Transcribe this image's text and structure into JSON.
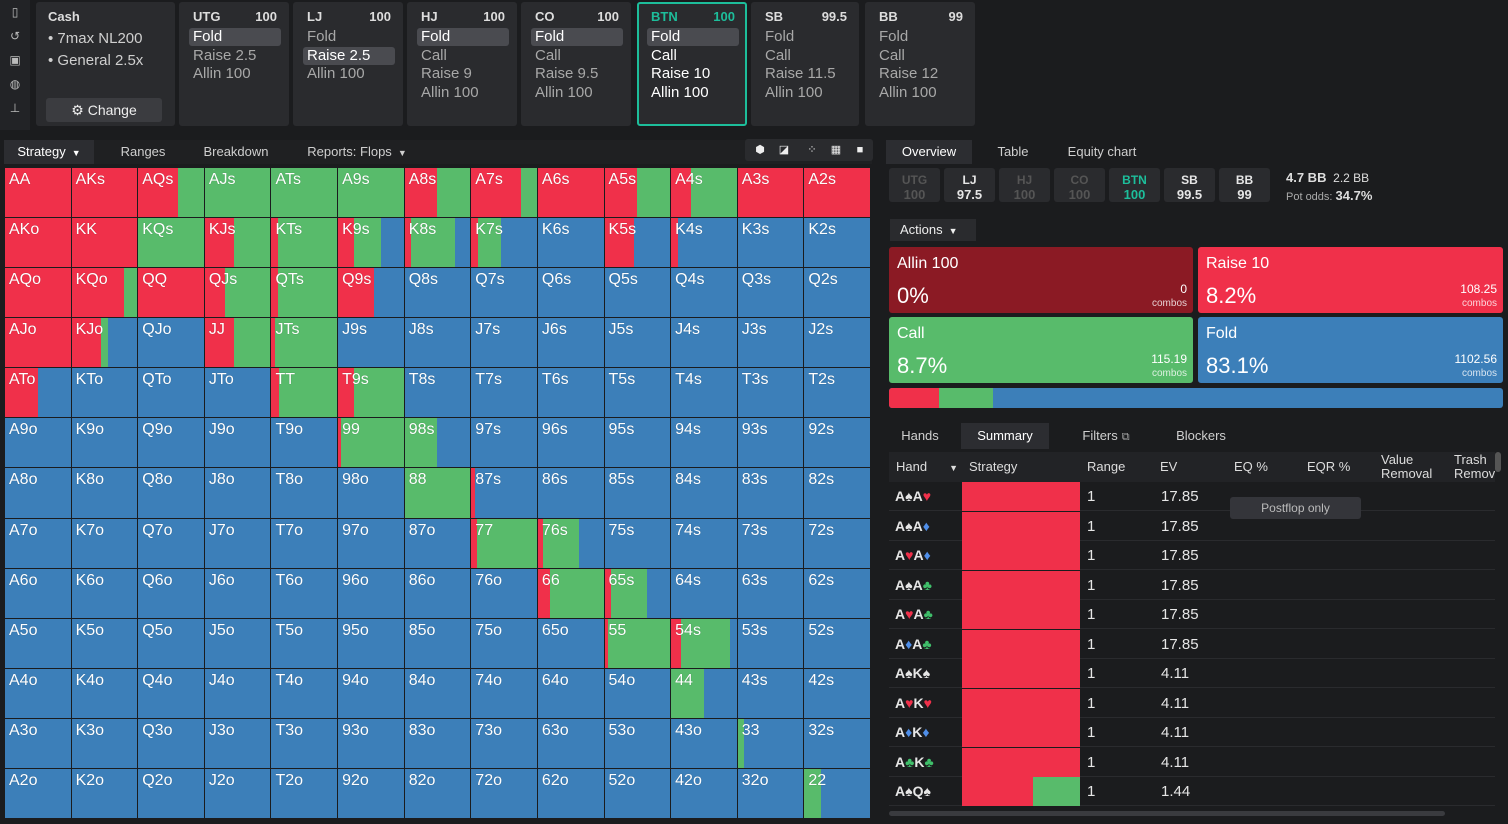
{
  "colors": {
    "raise": "#f0304a",
    "call": "#58bb6b",
    "fold": "#3c7fb9",
    "allin": "#8b1a24",
    "accent": "#1dbe9b"
  },
  "sidebar": {
    "icons": [
      "bookmark-icon",
      "history-icon",
      "save-icon",
      "gamepad-icon",
      "align-icon"
    ]
  },
  "cash": {
    "title": "Cash",
    "items": [
      "7max NL200",
      "General 2.5x"
    ],
    "change_label": "Change"
  },
  "positions": [
    {
      "name": "UTG",
      "stack": "100",
      "actions": [
        "Fold",
        "Raise 2.5",
        "Allin 100"
      ],
      "selected": 0
    },
    {
      "name": "LJ",
      "stack": "100",
      "actions": [
        "Fold",
        "Raise 2.5",
        "Allin 100"
      ],
      "selected": 1
    },
    {
      "name": "HJ",
      "stack": "100",
      "actions": [
        "Fold",
        "Call",
        "Raise 9",
        "Allin 100"
      ],
      "selected": 0
    },
    {
      "name": "CO",
      "stack": "100",
      "actions": [
        "Fold",
        "Call",
        "Raise 9.5",
        "Allin 100"
      ],
      "selected": 0
    },
    {
      "name": "BTN",
      "stack": "100",
      "actions": [
        "Fold",
        "Call",
        "Raise 10",
        "Allin 100"
      ],
      "selected": 0,
      "active": true
    },
    {
      "name": "SB",
      "stack": "99.5",
      "actions": [
        "Fold",
        "Call",
        "Raise 11.5",
        "Allin 100"
      ],
      "selected": -1
    },
    {
      "name": "BB",
      "stack": "99",
      "actions": [
        "Fold",
        "Call",
        "Raise 12",
        "Allin 100"
      ],
      "selected": -1
    }
  ],
  "left_tabs": [
    "Strategy",
    "Ranges",
    "Breakdown",
    "Reports: Flops"
  ],
  "view_icons": [
    "cube-icon",
    "contrast-icon",
    "compress-icon",
    "grid-icon",
    "square-icon"
  ],
  "right_tabs": [
    "Overview",
    "Table",
    "Equity chart"
  ],
  "pos_bar": [
    {
      "n": "UTG",
      "s": "100",
      "st": "dim"
    },
    {
      "n": "LJ",
      "s": "97.5",
      "st": ""
    },
    {
      "n": "HJ",
      "s": "100",
      "st": "dim"
    },
    {
      "n": "CO",
      "s": "100",
      "st": "dim"
    },
    {
      "n": "BTN",
      "s": "100",
      "st": "cur"
    },
    {
      "n": "SB",
      "s": "99.5",
      "st": ""
    },
    {
      "n": "BB",
      "s": "99",
      "st": ""
    }
  ],
  "pot": {
    "a": "4.7 BB",
    "b": "2.2 BB",
    "label": "Pot odds:",
    "odds": "34.7%"
  },
  "actions_label": "Actions",
  "action_boxes": [
    {
      "name": "Allin 100",
      "pct": "0%",
      "combos": "0",
      "unit": "combos",
      "color": "#8b1a24"
    },
    {
      "name": "Raise 10",
      "pct": "8.2%",
      "combos": "108.25",
      "unit": "combos",
      "color": "#f0304a"
    },
    {
      "name": "Call",
      "pct": "8.7%",
      "combos": "115.19",
      "unit": "combos",
      "color": "#58bb6b"
    },
    {
      "name": "Fold",
      "pct": "83.1%",
      "combos": "1102.56",
      "unit": "combos",
      "color": "#3c7fb9"
    }
  ],
  "mix": {
    "raise": 8.2,
    "call": 8.7,
    "fold": 83.1
  },
  "bottom_tabs": [
    "Hands",
    "Summary",
    "Filters",
    "Blockers"
  ],
  "table_headers": [
    "Hand",
    "Strategy",
    "Range",
    "EV",
    "EQ %",
    "EQR %",
    "Value Removal",
    "Trash Removal"
  ],
  "postflop_label": "Postflop only",
  "rows": [
    {
      "h": [
        [
          "A",
          "♠",
          "sp"
        ],
        [
          "A",
          "♥",
          "ht"
        ]
      ],
      "r": "1",
      "ev": "17.85",
      "mix": [
        1,
        0
      ]
    },
    {
      "h": [
        [
          "A",
          "♠",
          "sp"
        ],
        [
          "A",
          "♦",
          "dm"
        ]
      ],
      "r": "1",
      "ev": "17.85",
      "mix": [
        1,
        0
      ]
    },
    {
      "h": [
        [
          "A",
          "♥",
          "ht"
        ],
        [
          "A",
          "♦",
          "dm"
        ]
      ],
      "r": "1",
      "ev": "17.85",
      "mix": [
        1,
        0
      ]
    },
    {
      "h": [
        [
          "A",
          "♠",
          "sp"
        ],
        [
          "A",
          "♣",
          "cl"
        ]
      ],
      "r": "1",
      "ev": "17.85",
      "mix": [
        1,
        0
      ]
    },
    {
      "h": [
        [
          "A",
          "♥",
          "ht"
        ],
        [
          "A",
          "♣",
          "cl"
        ]
      ],
      "r": "1",
      "ev": "17.85",
      "mix": [
        1,
        0
      ]
    },
    {
      "h": [
        [
          "A",
          "♦",
          "dm"
        ],
        [
          "A",
          "♣",
          "cl"
        ]
      ],
      "r": "1",
      "ev": "17.85",
      "mix": [
        1,
        0
      ]
    },
    {
      "h": [
        [
          "A",
          "♠",
          "sp"
        ],
        [
          "K",
          "♠",
          "sp"
        ]
      ],
      "r": "1",
      "ev": "4.11",
      "mix": [
        1,
        0
      ]
    },
    {
      "h": [
        [
          "A",
          "♥",
          "ht"
        ],
        [
          "K",
          "♥",
          "ht"
        ]
      ],
      "r": "1",
      "ev": "4.11",
      "mix": [
        1,
        0
      ]
    },
    {
      "h": [
        [
          "A",
          "♦",
          "dm"
        ],
        [
          "K",
          "♦",
          "dm"
        ]
      ],
      "r": "1",
      "ev": "4.11",
      "mix": [
        1,
        0
      ]
    },
    {
      "h": [
        [
          "A",
          "♣",
          "cl"
        ],
        [
          "K",
          "♣",
          "cl"
        ]
      ],
      "r": "1",
      "ev": "4.11",
      "mix": [
        1,
        0
      ]
    },
    {
      "h": [
        [
          "A",
          "♠",
          "sp"
        ],
        [
          "Q",
          "♠",
          "sp"
        ]
      ],
      "r": "1",
      "ev": "1.44",
      "mix": [
        0.6,
        0.4
      ]
    }
  ],
  "grid": [
    [
      "AA",
      1,
      0
    ],
    [
      "AKs",
      1,
      0
    ],
    [
      "AQs",
      0.6,
      0.4
    ],
    [
      "AJs",
      0,
      1
    ],
    [
      "ATs",
      0,
      1
    ],
    [
      "A9s",
      0,
      1
    ],
    [
      "A8s",
      0.5,
      0.5
    ],
    [
      "A7s",
      0.75,
      0.25
    ],
    [
      "A6s",
      1,
      0
    ],
    [
      "A5s",
      0.5,
      0.5
    ],
    [
      "A4s",
      0.3,
      0.7
    ],
    [
      "A3s",
      1,
      0
    ],
    [
      "A2s",
      1,
      0
    ],
    [
      "AKo",
      1,
      0
    ],
    [
      "KK",
      1,
      0
    ],
    [
      "KQs",
      0,
      1
    ],
    [
      "KJs",
      0.45,
      0.55
    ],
    [
      "KTs",
      0.1,
      0.9
    ],
    [
      "K9s",
      0.25,
      0.4
    ],
    [
      "K8s",
      0.1,
      0.67
    ],
    [
      "K7s",
      0.1,
      0.35
    ],
    [
      "K6s",
      0,
      0
    ],
    [
      "K5s",
      0.45,
      0
    ],
    [
      "K4s",
      0.1,
      0
    ],
    [
      "K3s",
      0,
      0
    ],
    [
      "K2s",
      0,
      0
    ],
    [
      "AQo",
      1,
      0
    ],
    [
      "KQo",
      0.8,
      0.2
    ],
    [
      "QQ",
      1,
      0
    ],
    [
      "QJs",
      0.3,
      0.7
    ],
    [
      "QTs",
      0.1,
      0.9
    ],
    [
      "Q9s",
      0.55,
      0
    ],
    [
      "Q8s",
      0,
      0
    ],
    [
      "Q7s",
      0,
      0
    ],
    [
      "Q6s",
      0,
      0
    ],
    [
      "Q5s",
      0,
      0
    ],
    [
      "Q4s",
      0,
      0
    ],
    [
      "Q3s",
      0,
      0
    ],
    [
      "Q2s",
      0,
      0
    ],
    [
      "AJo",
      1,
      0
    ],
    [
      "KJo",
      0.45,
      0.1
    ],
    [
      "QJo",
      0,
      0
    ],
    [
      "JJ",
      0.45,
      0.55
    ],
    [
      "JTs",
      0.05,
      0.95
    ],
    [
      "J9s",
      0,
      0
    ],
    [
      "J8s",
      0,
      0
    ],
    [
      "J7s",
      0,
      0
    ],
    [
      "J6s",
      0,
      0
    ],
    [
      "J5s",
      0,
      0
    ],
    [
      "J4s",
      0,
      0
    ],
    [
      "J3s",
      0,
      0
    ],
    [
      "J2s",
      0,
      0
    ],
    [
      "ATo",
      0.5,
      0
    ],
    [
      "KTo",
      0,
      0
    ],
    [
      "QTo",
      0,
      0
    ],
    [
      "JTo",
      0,
      0
    ],
    [
      "TT",
      0.12,
      0.88
    ],
    [
      "T9s",
      0.25,
      0.75
    ],
    [
      "T8s",
      0,
      0
    ],
    [
      "T7s",
      0,
      0
    ],
    [
      "T6s",
      0,
      0
    ],
    [
      "T5s",
      0,
      0
    ],
    [
      "T4s",
      0,
      0
    ],
    [
      "T3s",
      0,
      0
    ],
    [
      "T2s",
      0,
      0
    ],
    [
      "A9o",
      0,
      0
    ],
    [
      "K9o",
      0,
      0
    ],
    [
      "Q9o",
      0,
      0
    ],
    [
      "J9o",
      0,
      0
    ],
    [
      "T9o",
      0,
      0
    ],
    [
      "99",
      0.05,
      0.95
    ],
    [
      "98s",
      0,
      0.5
    ],
    [
      "97s",
      0,
      0
    ],
    [
      "96s",
      0,
      0
    ],
    [
      "95s",
      0,
      0
    ],
    [
      "94s",
      0,
      0
    ],
    [
      "93s",
      0,
      0
    ],
    [
      "92s",
      0,
      0
    ],
    [
      "A8o",
      0,
      0
    ],
    [
      "K8o",
      0,
      0
    ],
    [
      "Q8o",
      0,
      0
    ],
    [
      "J8o",
      0,
      0
    ],
    [
      "T8o",
      0,
      0
    ],
    [
      "98o",
      0,
      0
    ],
    [
      "88",
      0,
      1
    ],
    [
      "87s",
      0.05,
      0
    ],
    [
      "86s",
      0,
      0
    ],
    [
      "85s",
      0,
      0
    ],
    [
      "84s",
      0,
      0
    ],
    [
      "83s",
      0,
      0
    ],
    [
      "82s",
      0,
      0
    ],
    [
      "A7o",
      0,
      0
    ],
    [
      "K7o",
      0,
      0
    ],
    [
      "Q7o",
      0,
      0
    ],
    [
      "J7o",
      0,
      0
    ],
    [
      "T7o",
      0,
      0
    ],
    [
      "97o",
      0,
      0
    ],
    [
      "87o",
      0,
      0
    ],
    [
      "77",
      0.08,
      0.92
    ],
    [
      "76s",
      0.08,
      0.55
    ],
    [
      "75s",
      0,
      0
    ],
    [
      "74s",
      0,
      0
    ],
    [
      "73s",
      0,
      0
    ],
    [
      "72s",
      0,
      0
    ],
    [
      "A6o",
      0,
      0
    ],
    [
      "K6o",
      0,
      0
    ],
    [
      "Q6o",
      0,
      0
    ],
    [
      "J6o",
      0,
      0
    ],
    [
      "T6o",
      0,
      0
    ],
    [
      "96o",
      0,
      0
    ],
    [
      "86o",
      0,
      0
    ],
    [
      "76o",
      0,
      0
    ],
    [
      "66",
      0.18,
      0.82
    ],
    [
      "65s",
      0.1,
      0.55
    ],
    [
      "64s",
      0,
      0
    ],
    [
      "63s",
      0,
      0
    ],
    [
      "62s",
      0,
      0
    ],
    [
      "A5o",
      0,
      0
    ],
    [
      "K5o",
      0,
      0
    ],
    [
      "Q5o",
      0,
      0
    ],
    [
      "J5o",
      0,
      0
    ],
    [
      "T5o",
      0,
      0
    ],
    [
      "95o",
      0,
      0
    ],
    [
      "85o",
      0,
      0
    ],
    [
      "75o",
      0,
      0
    ],
    [
      "65o",
      0,
      0
    ],
    [
      "55",
      0.05,
      0.95
    ],
    [
      "54s",
      0.15,
      0.75
    ],
    [
      "53s",
      0,
      0
    ],
    [
      "52s",
      0,
      0
    ],
    [
      "A4o",
      0,
      0
    ],
    [
      "K4o",
      0,
      0
    ],
    [
      "Q4o",
      0,
      0
    ],
    [
      "J4o",
      0,
      0
    ],
    [
      "T4o",
      0,
      0
    ],
    [
      "94o",
      0,
      0
    ],
    [
      "84o",
      0,
      0
    ],
    [
      "74o",
      0,
      0
    ],
    [
      "64o",
      0,
      0
    ],
    [
      "54o",
      0,
      0
    ],
    [
      "44",
      0,
      0.5
    ],
    [
      "43s",
      0,
      0
    ],
    [
      "42s",
      0,
      0
    ],
    [
      "A3o",
      0,
      0
    ],
    [
      "K3o",
      0,
      0
    ],
    [
      "Q3o",
      0,
      0
    ],
    [
      "J3o",
      0,
      0
    ],
    [
      "T3o",
      0,
      0
    ],
    [
      "93o",
      0,
      0
    ],
    [
      "83o",
      0,
      0
    ],
    [
      "73o",
      0,
      0
    ],
    [
      "63o",
      0,
      0
    ],
    [
      "53o",
      0,
      0
    ],
    [
      "43o",
      0,
      0
    ],
    [
      "33",
      0,
      0.1
    ],
    [
      "32s",
      0,
      0
    ],
    [
      "A2o",
      0,
      0
    ],
    [
      "K2o",
      0,
      0
    ],
    [
      "Q2o",
      0,
      0
    ],
    [
      "J2o",
      0,
      0
    ],
    [
      "T2o",
      0,
      0
    ],
    [
      "92o",
      0,
      0
    ],
    [
      "82o",
      0,
      0
    ],
    [
      "72o",
      0,
      0
    ],
    [
      "62o",
      0,
      0
    ],
    [
      "52o",
      0,
      0
    ],
    [
      "42o",
      0,
      0
    ],
    [
      "32o",
      0,
      0
    ],
    [
      "22",
      0,
      0.25
    ]
  ]
}
